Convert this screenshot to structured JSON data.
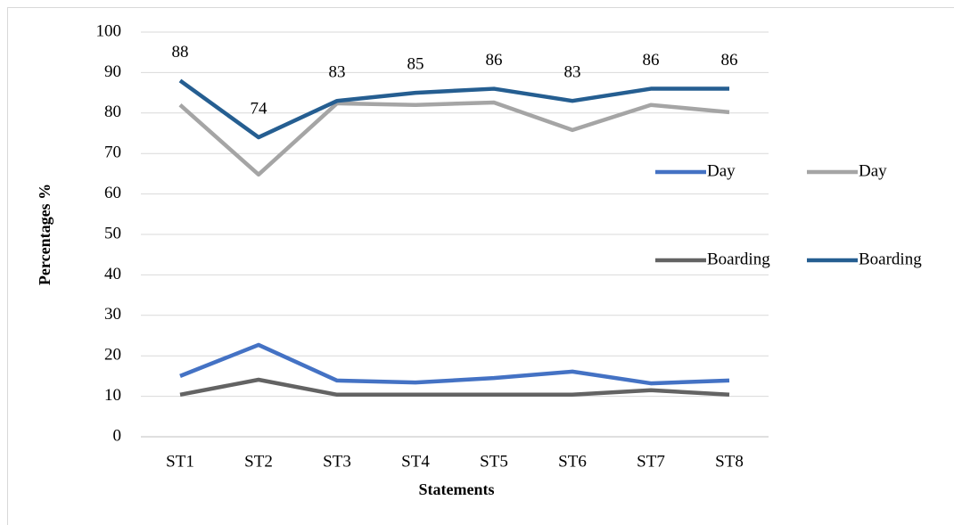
{
  "chart_data": {
    "type": "line",
    "x_label": "Statements",
    "y_label": "Percentages %",
    "categories": [
      "ST1",
      "ST2",
      "ST3",
      "ST4",
      "ST5",
      "ST6",
      "ST7",
      "ST8"
    ],
    "series": [
      {
        "name": "Day",
        "color": "#4472c4",
        "values": [
          15,
          22.7,
          13.9,
          13.4,
          14.5,
          16.1,
          13.2,
          13.9
        ]
      },
      {
        "name": "Day",
        "color": "#a5a5a5",
        "values": [
          82,
          64.8,
          82.4,
          82,
          82.6,
          75.8,
          82,
          80.2
        ]
      },
      {
        "name": "Boarding",
        "color": "#636363",
        "values": [
          10.4,
          14.1,
          10.4,
          10.4,
          10.4,
          10.4,
          11.5,
          10.4
        ]
      },
      {
        "name": "Boarding",
        "color": "#255e91",
        "values": [
          88,
          74,
          83,
          85,
          86,
          83,
          86,
          86
        ],
        "data_labels": true
      }
    ],
    "ylim": [
      0,
      100
    ],
    "yticks": [
      0,
      10,
      20,
      30,
      40,
      50,
      60,
      70,
      80,
      90,
      100
    ],
    "grid": true,
    "legend": "right"
  }
}
